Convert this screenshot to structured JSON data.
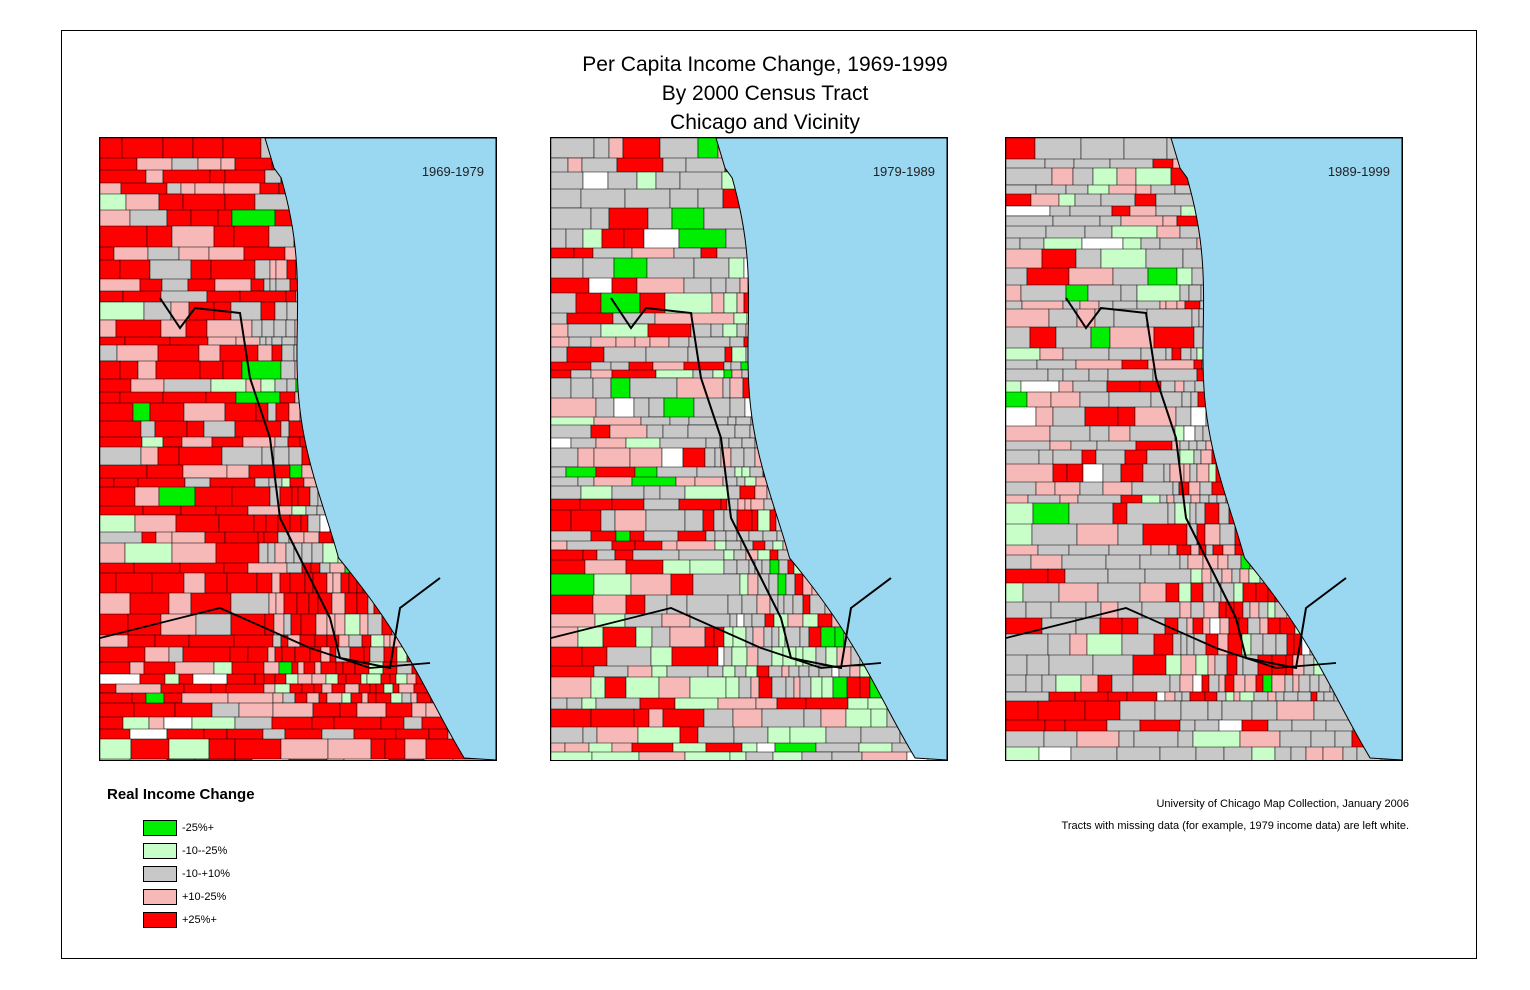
{
  "title_lines": [
    "Per Capita Income Change, 1969-1999",
    "By 2000 Census Tract",
    "Chicago and Vicinity"
  ],
  "maps": [
    {
      "period": "1969-1979",
      "profile": {
        "hot_red": 0.46,
        "pink": 0.26,
        "gray": 0.16,
        "ltgreen": 0.07,
        "green": 0.03,
        "white": 0.02
      }
    },
    {
      "period": "1979-1989",
      "profile": {
        "hot_red": 0.18,
        "pink": 0.22,
        "gray": 0.34,
        "ltgreen": 0.16,
        "green": 0.06,
        "white": 0.04
      }
    },
    {
      "period": "1989-1999",
      "profile": {
        "hot_red": 0.18,
        "pink": 0.26,
        "gray": 0.38,
        "ltgreen": 0.13,
        "green": 0.02,
        "white": 0.03
      }
    }
  ],
  "legend": {
    "title": "Real Income Change",
    "items": [
      {
        "label": "-25%+",
        "color": "#00ee00"
      },
      {
        "label": "-10--25%",
        "color": "#c8ffc8"
      },
      {
        "label": "-10-+10%",
        "color": "#c8c8c8"
      },
      {
        "label": "+10-25%",
        "color": "#f7b8b8"
      },
      {
        "label": "+25%+",
        "color": "#ff0000"
      }
    ]
  },
  "credits": {
    "line1": "University of Chicago Map Collection, January 2006",
    "line2": "Tracts with missing data (for example, 1979 income data) are left white."
  },
  "colors": {
    "lake": "#9ad8f2",
    "border": "#000000"
  }
}
